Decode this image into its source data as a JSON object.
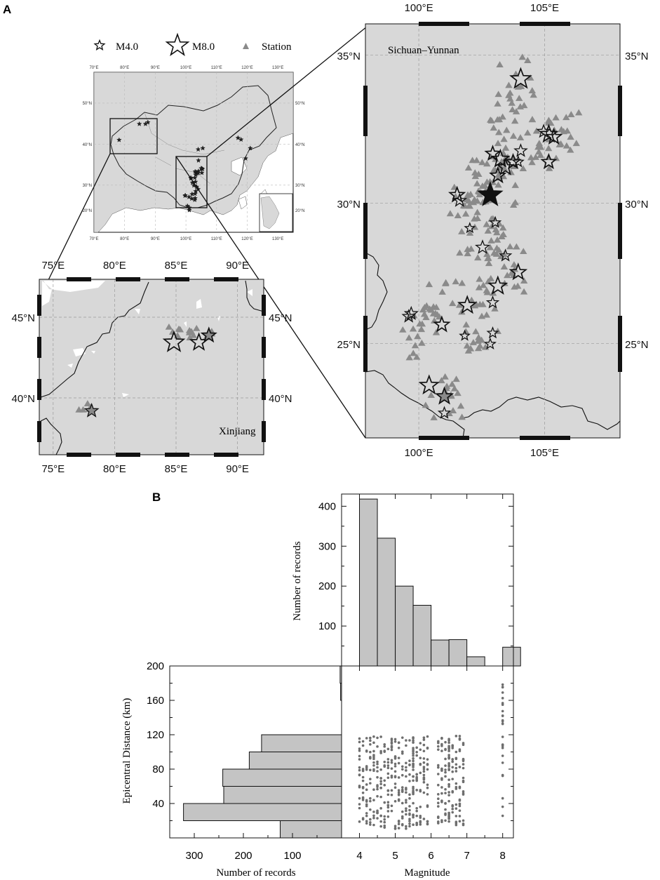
{
  "panel_labels": {
    "a": "A",
    "b": "B"
  },
  "legend": {
    "small_star": "M4.0",
    "large_star": "M8.0",
    "station": "Station"
  },
  "colors": {
    "land": "#d9d9d9",
    "sea": "#ffffff",
    "station": "#8a8a8a",
    "bar": "#c4c4c4",
    "dot": "#6e6e6e",
    "border": "#111111",
    "grid": "#9a9a9a"
  },
  "chart_data": [
    {
      "id": "overview_map",
      "type": "map",
      "xticks": [
        "70°E",
        "80°E",
        "90°E",
        "100°E",
        "110°E",
        "120°E",
        "130°E"
      ],
      "yticks": [
        "20°N",
        "30°N",
        "40°N",
        "50°N"
      ],
      "xlim": [
        70,
        135
      ],
      "ylim": [
        17,
        56
      ],
      "boxes": [
        {
          "name": "Xinjiang",
          "lon": [
            74,
            92
          ],
          "lat": [
            37,
            47
          ]
        },
        {
          "name": "Sichuan–Yunnan",
          "lon": [
            98,
            108
          ],
          "lat": [
            22,
            36
          ]
        }
      ]
    },
    {
      "id": "xinjiang_map",
      "type": "map",
      "region_label": "Xinjiang",
      "xticks": [
        "75°E",
        "80°E",
        "85°E",
        "90°E"
      ],
      "yticks": [
        "40°N",
        "45°N"
      ],
      "xlim": [
        74,
        92
      ],
      "ylim": [
        37,
        47
      ],
      "events": [
        {
          "lon": 84.8,
          "lat": 43.4,
          "m": 7.2,
          "fill": "none"
        },
        {
          "lon": 86.8,
          "lat": 43.4,
          "m": 6.4,
          "fill": "none"
        },
        {
          "lon": 87.6,
          "lat": 43.8,
          "m": 5.8,
          "fill": "#8a8a8a"
        },
        {
          "lon": 78.2,
          "lat": 39.5,
          "m": 5.6,
          "fill": "#8a8a8a"
        }
      ]
    },
    {
      "id": "sichuan_yunnan_map",
      "type": "map",
      "region_label": "Sichuan–Yunnan",
      "xticks": [
        "100°E",
        "105°E"
      ],
      "yticks": [
        "25°N",
        "30°N",
        "35°N"
      ],
      "xlim": [
        98,
        108
      ],
      "ylim": [
        21.5,
        36.5
      ],
      "events": [
        {
          "lon": 104.1,
          "lat": 34.5,
          "m": 7.2
        },
        {
          "lon": 105.2,
          "lat": 32.5,
          "m": 6.5
        },
        {
          "lon": 105.4,
          "lat": 32.4,
          "m": 6.0
        },
        {
          "lon": 105.0,
          "lat": 32.6,
          "m": 5.5
        },
        {
          "lon": 105.2,
          "lat": 31.5,
          "m": 5.8
        },
        {
          "lon": 103.3,
          "lat": 31.6,
          "m": 6.5
        },
        {
          "lon": 103.5,
          "lat": 31.3,
          "m": 6.2
        },
        {
          "lon": 103.0,
          "lat": 31.8,
          "m": 5.8
        },
        {
          "lon": 103.8,
          "lat": 31.5,
          "m": 5.8
        },
        {
          "lon": 103.2,
          "lat": 31.0,
          "m": 6.0
        },
        {
          "lon": 104.1,
          "lat": 31.9,
          "m": 5.4
        },
        {
          "lon": 104.0,
          "lat": 31.5,
          "m": 5.0
        },
        {
          "lon": 101.6,
          "lat": 30.3,
          "m": 6.0
        },
        {
          "lon": 101.7,
          "lat": 30.1,
          "m": 5.5
        },
        {
          "lon": 102.9,
          "lat": 30.3,
          "m": 8.0,
          "fill": "#111111"
        },
        {
          "lon": 103.1,
          "lat": 29.3,
          "m": 5.0
        },
        {
          "lon": 102.1,
          "lat": 29.1,
          "m": 4.8
        },
        {
          "lon": 102.6,
          "lat": 28.4,
          "m": 5.6
        },
        {
          "lon": 103.5,
          "lat": 28.1,
          "m": 5.2
        },
        {
          "lon": 104.0,
          "lat": 27.5,
          "m": 6.2
        },
        {
          "lon": 103.2,
          "lat": 27.0,
          "m": 6.6
        },
        {
          "lon": 103.0,
          "lat": 26.4,
          "m": 5.2
        },
        {
          "lon": 102.0,
          "lat": 26.3,
          "m": 6.5
        },
        {
          "lon": 99.8,
          "lat": 26.0,
          "m": 5.5
        },
        {
          "lon": 99.7,
          "lat": 25.9,
          "m": 5.4
        },
        {
          "lon": 101.0,
          "lat": 25.6,
          "m": 6.0
        },
        {
          "lon": 101.9,
          "lat": 25.2,
          "m": 4.8
        },
        {
          "lon": 103.0,
          "lat": 25.3,
          "m": 5.0
        },
        {
          "lon": 102.9,
          "lat": 24.9,
          "m": 5.0
        },
        {
          "lon": 100.5,
          "lat": 23.4,
          "m": 6.8
        },
        {
          "lon": 101.1,
          "lat": 23.0,
          "m": 6.3,
          "fill": "#8a8a8a"
        },
        {
          "lon": 101.1,
          "lat": 22.4,
          "m": 5.2
        }
      ]
    },
    {
      "id": "magnitude_histogram",
      "type": "bar",
      "xlabel": "Magnitude",
      "ylabel": "Number of records",
      "bin_edges": [
        4.0,
        4.5,
        5.0,
        5.5,
        6.0,
        6.5,
        7.0,
        7.5,
        8.0,
        8.5
      ],
      "values": [
        418,
        320,
        200,
        152,
        65,
        66,
        23,
        0,
        47
      ],
      "ylim": [
        0,
        420
      ],
      "yticks": [
        100,
        200,
        300,
        400
      ]
    },
    {
      "id": "distance_histogram",
      "type": "bar",
      "orientation": "horizontal",
      "xlabel": "Number of records",
      "ylabel": "Epicentral Distance (km)",
      "bin_edges": [
        0,
        20,
        40,
        60,
        80,
        100,
        120,
        140,
        160,
        180,
        200
      ],
      "values": [
        125,
        322,
        240,
        242,
        188,
        163,
        0,
        0,
        2,
        3
      ],
      "xlim": [
        350,
        0
      ],
      "xticks": [
        300,
        200,
        100
      ],
      "yticks": [
        40,
        80,
        120,
        160,
        200
      ]
    },
    {
      "id": "magnitude_distance_scatter",
      "type": "scatter",
      "xlabel": "Magnitude",
      "ylabel": "Epicentral Distance (km)",
      "xlim": [
        3.5,
        8.3
      ],
      "ylim": [
        0,
        200
      ],
      "xticks": [
        4,
        5,
        6,
        7,
        8
      ],
      "groups": [
        {
          "x": 4.0,
          "x_max": 4.45,
          "y": [
            14,
            118
          ]
        },
        {
          "x": 4.5,
          "x_max": 4.95,
          "y": [
            12,
            118
          ]
        },
        {
          "x": 5.0,
          "x_max": 5.5,
          "y": [
            10,
            120
          ]
        },
        {
          "x": 5.5,
          "x_max": 5.95,
          "y": [
            15,
            120
          ]
        },
        {
          "x": 6.2,
          "x_max": 6.5,
          "y": [
            15,
            120
          ]
        },
        {
          "x": 6.5,
          "x_max": 6.95,
          "y": [
            15,
            120
          ]
        },
        {
          "x": 8.0,
          "x_max": 8.0,
          "y": [
            20,
            185
          ]
        }
      ]
    }
  ]
}
